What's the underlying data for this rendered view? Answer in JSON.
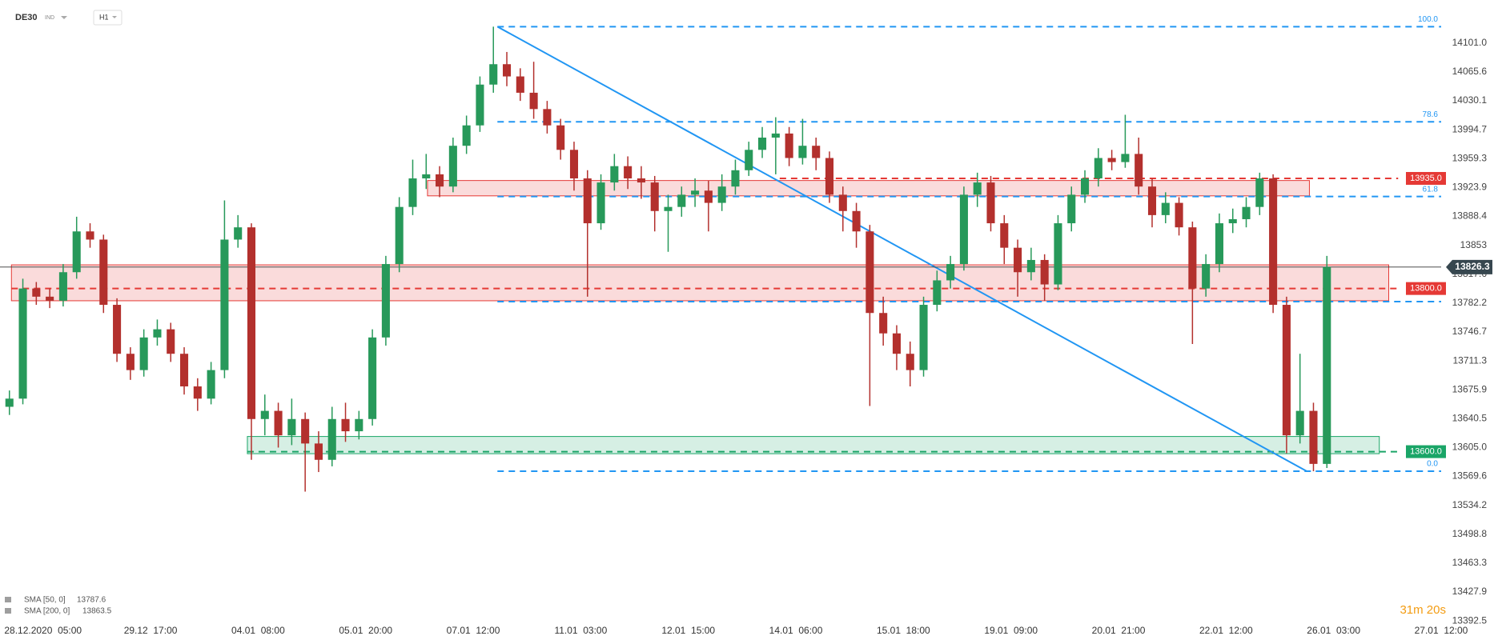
{
  "header": {
    "symbol": "DE30",
    "kind": "IND",
    "interval": "H1"
  },
  "chart_data": {
    "type": "candlestick",
    "categories": [
      null,
      null,
      null,
      null,
      null,
      null,
      null,
      null,
      null,
      null,
      null,
      null,
      null,
      null,
      null,
      null,
      null,
      null,
      null,
      null,
      null,
      null,
      null,
      null,
      null,
      null,
      null,
      null,
      null,
      null,
      null,
      null,
      null,
      null,
      null,
      null,
      null,
      null,
      null,
      null,
      null,
      null,
      null,
      null,
      null,
      null,
      null,
      null,
      null,
      null,
      null,
      null,
      null,
      null,
      null,
      null,
      null,
      null,
      null,
      null,
      null,
      null,
      null,
      null,
      null,
      null,
      null,
      null,
      null,
      null,
      null,
      null,
      null,
      null,
      null,
      null,
      null,
      null,
      null,
      null,
      null,
      null,
      null,
      null,
      null,
      null,
      null,
      null,
      null,
      null,
      null,
      null,
      null,
      null,
      null,
      null,
      null,
      null,
      null
    ],
    "open": [
      13655,
      13665,
      13800,
      13790,
      13785,
      13820,
      13870,
      13860,
      13780,
      13720,
      13700,
      13740,
      13750,
      13720,
      13680,
      13665,
      13700,
      13860,
      13875,
      13640,
      13650,
      13620,
      13640,
      13610,
      13590,
      13640,
      13625,
      13640,
      13740,
      13830,
      13900,
      13935,
      13940,
      13925,
      13975,
      14000,
      14050,
      14075,
      14060,
      14040,
      14020,
      14000,
      13970,
      13935,
      13880,
      13930,
      13950,
      13935,
      13930,
      13895,
      13900,
      13915,
      13920,
      13905,
      13925,
      13945,
      13970,
      13985,
      13990,
      13960,
      13975,
      13960,
      13915,
      13895,
      13870,
      13770,
      13745,
      13720,
      13700,
      13780,
      13810,
      13830,
      13915,
      13930,
      13880,
      13850,
      13820,
      13835,
      13805,
      13880,
      13915,
      13935,
      13960,
      13955,
      13965,
      13925,
      13890,
      13905,
      13875,
      13800,
      13830,
      13880,
      13885,
      13900,
      13935,
      13780,
      13620,
      13650,
      13585
    ],
    "high": [
      13675,
      13812,
      13808,
      13800,
      13830,
      13888,
      13880,
      13866,
      13788,
      13728,
      13750,
      13762,
      13758,
      13728,
      13690,
      13710,
      13908,
      13890,
      13880,
      13670,
      13660,
      13665,
      13648,
      13625,
      13655,
      13660,
      13650,
      13750,
      13840,
      13912,
      13958,
      13965,
      13950,
      13985,
      14012,
      14060,
      14121,
      14090,
      14070,
      14078,
      14030,
      14008,
      13980,
      13945,
      13940,
      13965,
      13962,
      13950,
      13938,
      13915,
      13925,
      13935,
      13932,
      13940,
      13958,
      13980,
      13998,
      14010,
      13998,
      14008,
      13985,
      13968,
      13925,
      13905,
      13878,
      13790,
      13755,
      13735,
      13790,
      13822,
      13840,
      13925,
      13942,
      13938,
      13890,
      13860,
      13850,
      13842,
      13890,
      13925,
      13945,
      13972,
      13970,
      14013,
      13985,
      13935,
      13918,
      13912,
      13882,
      13842,
      13892,
      13898,
      13912,
      13942,
      13940,
      13790,
      13720,
      13660,
      13840
    ],
    "low": [
      13645,
      13658,
      13780,
      13776,
      13778,
      13812,
      13850,
      13770,
      13710,
      13688,
      13692,
      13730,
      13710,
      13670,
      13650,
      13658,
      13690,
      13850,
      13590,
      13620,
      13605,
      13608,
      13551,
      13575,
      13582,
      13612,
      13615,
      13632,
      13730,
      13820,
      13890,
      13922,
      13912,
      13918,
      13965,
      13992,
      14040,
      14048,
      14030,
      14008,
      13990,
      13958,
      13920,
      13790,
      13872,
      13920,
      13922,
      13910,
      13870,
      13845,
      13888,
      13900,
      13870,
      13895,
      13915,
      13938,
      13960,
      13940,
      13950,
      13952,
      13945,
      13905,
      13870,
      13850,
      13656,
      13730,
      13700,
      13680,
      13692,
      13772,
      13800,
      13822,
      13900,
      13870,
      13830,
      13790,
      13810,
      13785,
      13798,
      13870,
      13905,
      13925,
      13945,
      13948,
      13915,
      13875,
      13880,
      13865,
      13732,
      13790,
      13820,
      13868,
      13875,
      13890,
      13770,
      13598,
      13610,
      13576,
      13580
    ],
    "close": [
      13665,
      13800,
      13790,
      13785,
      13820,
      13870,
      13860,
      13780,
      13720,
      13700,
      13740,
      13750,
      13720,
      13680,
      13665,
      13700,
      13860,
      13875,
      13640,
      13650,
      13620,
      13640,
      13610,
      13590,
      13640,
      13625,
      13640,
      13740,
      13830,
      13900,
      13935,
      13940,
      13925,
      13975,
      14000,
      14050,
      14075,
      14060,
      14040,
      14020,
      14000,
      13970,
      13935,
      13880,
      13930,
      13950,
      13935,
      13930,
      13895,
      13900,
      13915,
      13920,
      13905,
      13925,
      13945,
      13970,
      13985,
      13990,
      13960,
      13975,
      13960,
      13915,
      13895,
      13870,
      13770,
      13745,
      13720,
      13700,
      13780,
      13810,
      13830,
      13915,
      13930,
      13880,
      13850,
      13820,
      13835,
      13805,
      13880,
      13915,
      13935,
      13960,
      13955,
      13965,
      13925,
      13890,
      13905,
      13875,
      13800,
      13830,
      13880,
      13885,
      13900,
      13935,
      13780,
      13620,
      13650,
      13585,
      13826.3
    ],
    "colors": {
      "up": "#27995a",
      "down": "#b3302d"
    },
    "xlim": [
      -0.7,
      106.5
    ],
    "xticks": [
      {
        "value": 2.5,
        "label": "28.12.2020  05:00"
      },
      {
        "value": 10.5,
        "label": "29.12  17:00"
      },
      {
        "value": 18.5,
        "label": "04.01  08:00"
      },
      {
        "value": 26.5,
        "label": "05.01  20:00"
      },
      {
        "value": 34.5,
        "label": "07.01  12:00"
      },
      {
        "value": 42.5,
        "label": "11.01  03:00"
      },
      {
        "value": 50.5,
        "label": "12.01  15:00"
      },
      {
        "value": 58.5,
        "label": "14.01  06:00"
      },
      {
        "value": 66.5,
        "label": "15.01  18:00"
      },
      {
        "value": 74.5,
        "label": "19.01  09:00"
      },
      {
        "value": 82.5,
        "label": "20.01  21:00"
      },
      {
        "value": 90.5,
        "label": "22.01  12:00"
      },
      {
        "value": 98.5,
        "label": "26.01  03:00"
      },
      {
        "value": 106.5,
        "label": "27.01  12:00"
      }
    ],
    "ylim": [
      13369.1,
      14153.7
    ],
    "yticks": [
      {
        "value": 14101,
        "label": "14101.0"
      },
      14065.6,
      14030.1,
      13994.7,
      13959.3,
      13923.9,
      13888.4,
      13853,
      13817.6,
      13782.2,
      13746.7,
      13711.3,
      13675.9,
      13640.5,
      {
        "value": 13605,
        "label": "13605.0"
      },
      13569.6,
      13534.2,
      13498.8,
      13463.3,
      13427.9,
      13392.5
    ],
    "last_price": 13826.3,
    "levels": [
      {
        "price": 13935,
        "value_label": "13935.0",
        "color": "#e53935",
        "zone": [
          13913.6,
          13932.4
        ],
        "zone_x": [
          31.1,
          96.7
        ],
        "line_x": [
          57.3,
          103.3
        ]
      },
      {
        "price": 13800,
        "value_label": "13800.0",
        "color": "#e53935",
        "zone": [
          13785,
          13829
        ],
        "zone_x": [
          0.15,
          102.6
        ],
        "line_x": [
          0.15,
          103.3
        ]
      },
      {
        "price": 13600,
        "value_label": "13600.0",
        "color": "#1aa567",
        "zone": [
          13597.5,
          13618.6
        ],
        "zone_x": [
          17.7,
          101.9
        ],
        "line_x": [
          17.7,
          103.3
        ]
      }
    ],
    "fibonacci": {
      "color": "#2196f3",
      "x": [
        36.3,
        106.5
      ],
      "levels": [
        {
          "label": "100.0",
          "price": 14121
        },
        {
          "label": "78.6",
          "price": 14004.4
        },
        {
          "label": "61.8",
          "price": 13912.8
        },
        {
          "price": 13784
        },
        {
          "label": "0.0",
          "price": 13576
        }
      ]
    },
    "trendline": {
      "x": [
        36.3,
        96.5
      ],
      "y": [
        14121,
        13576
      ],
      "color": "#2196f3"
    },
    "indicators": [
      {
        "name": "SMA [50, 0]",
        "value": 13787.6
      },
      {
        "name": "SMA [200, 0]",
        "value": 13863.5
      }
    ],
    "timer": "31m 20s"
  }
}
